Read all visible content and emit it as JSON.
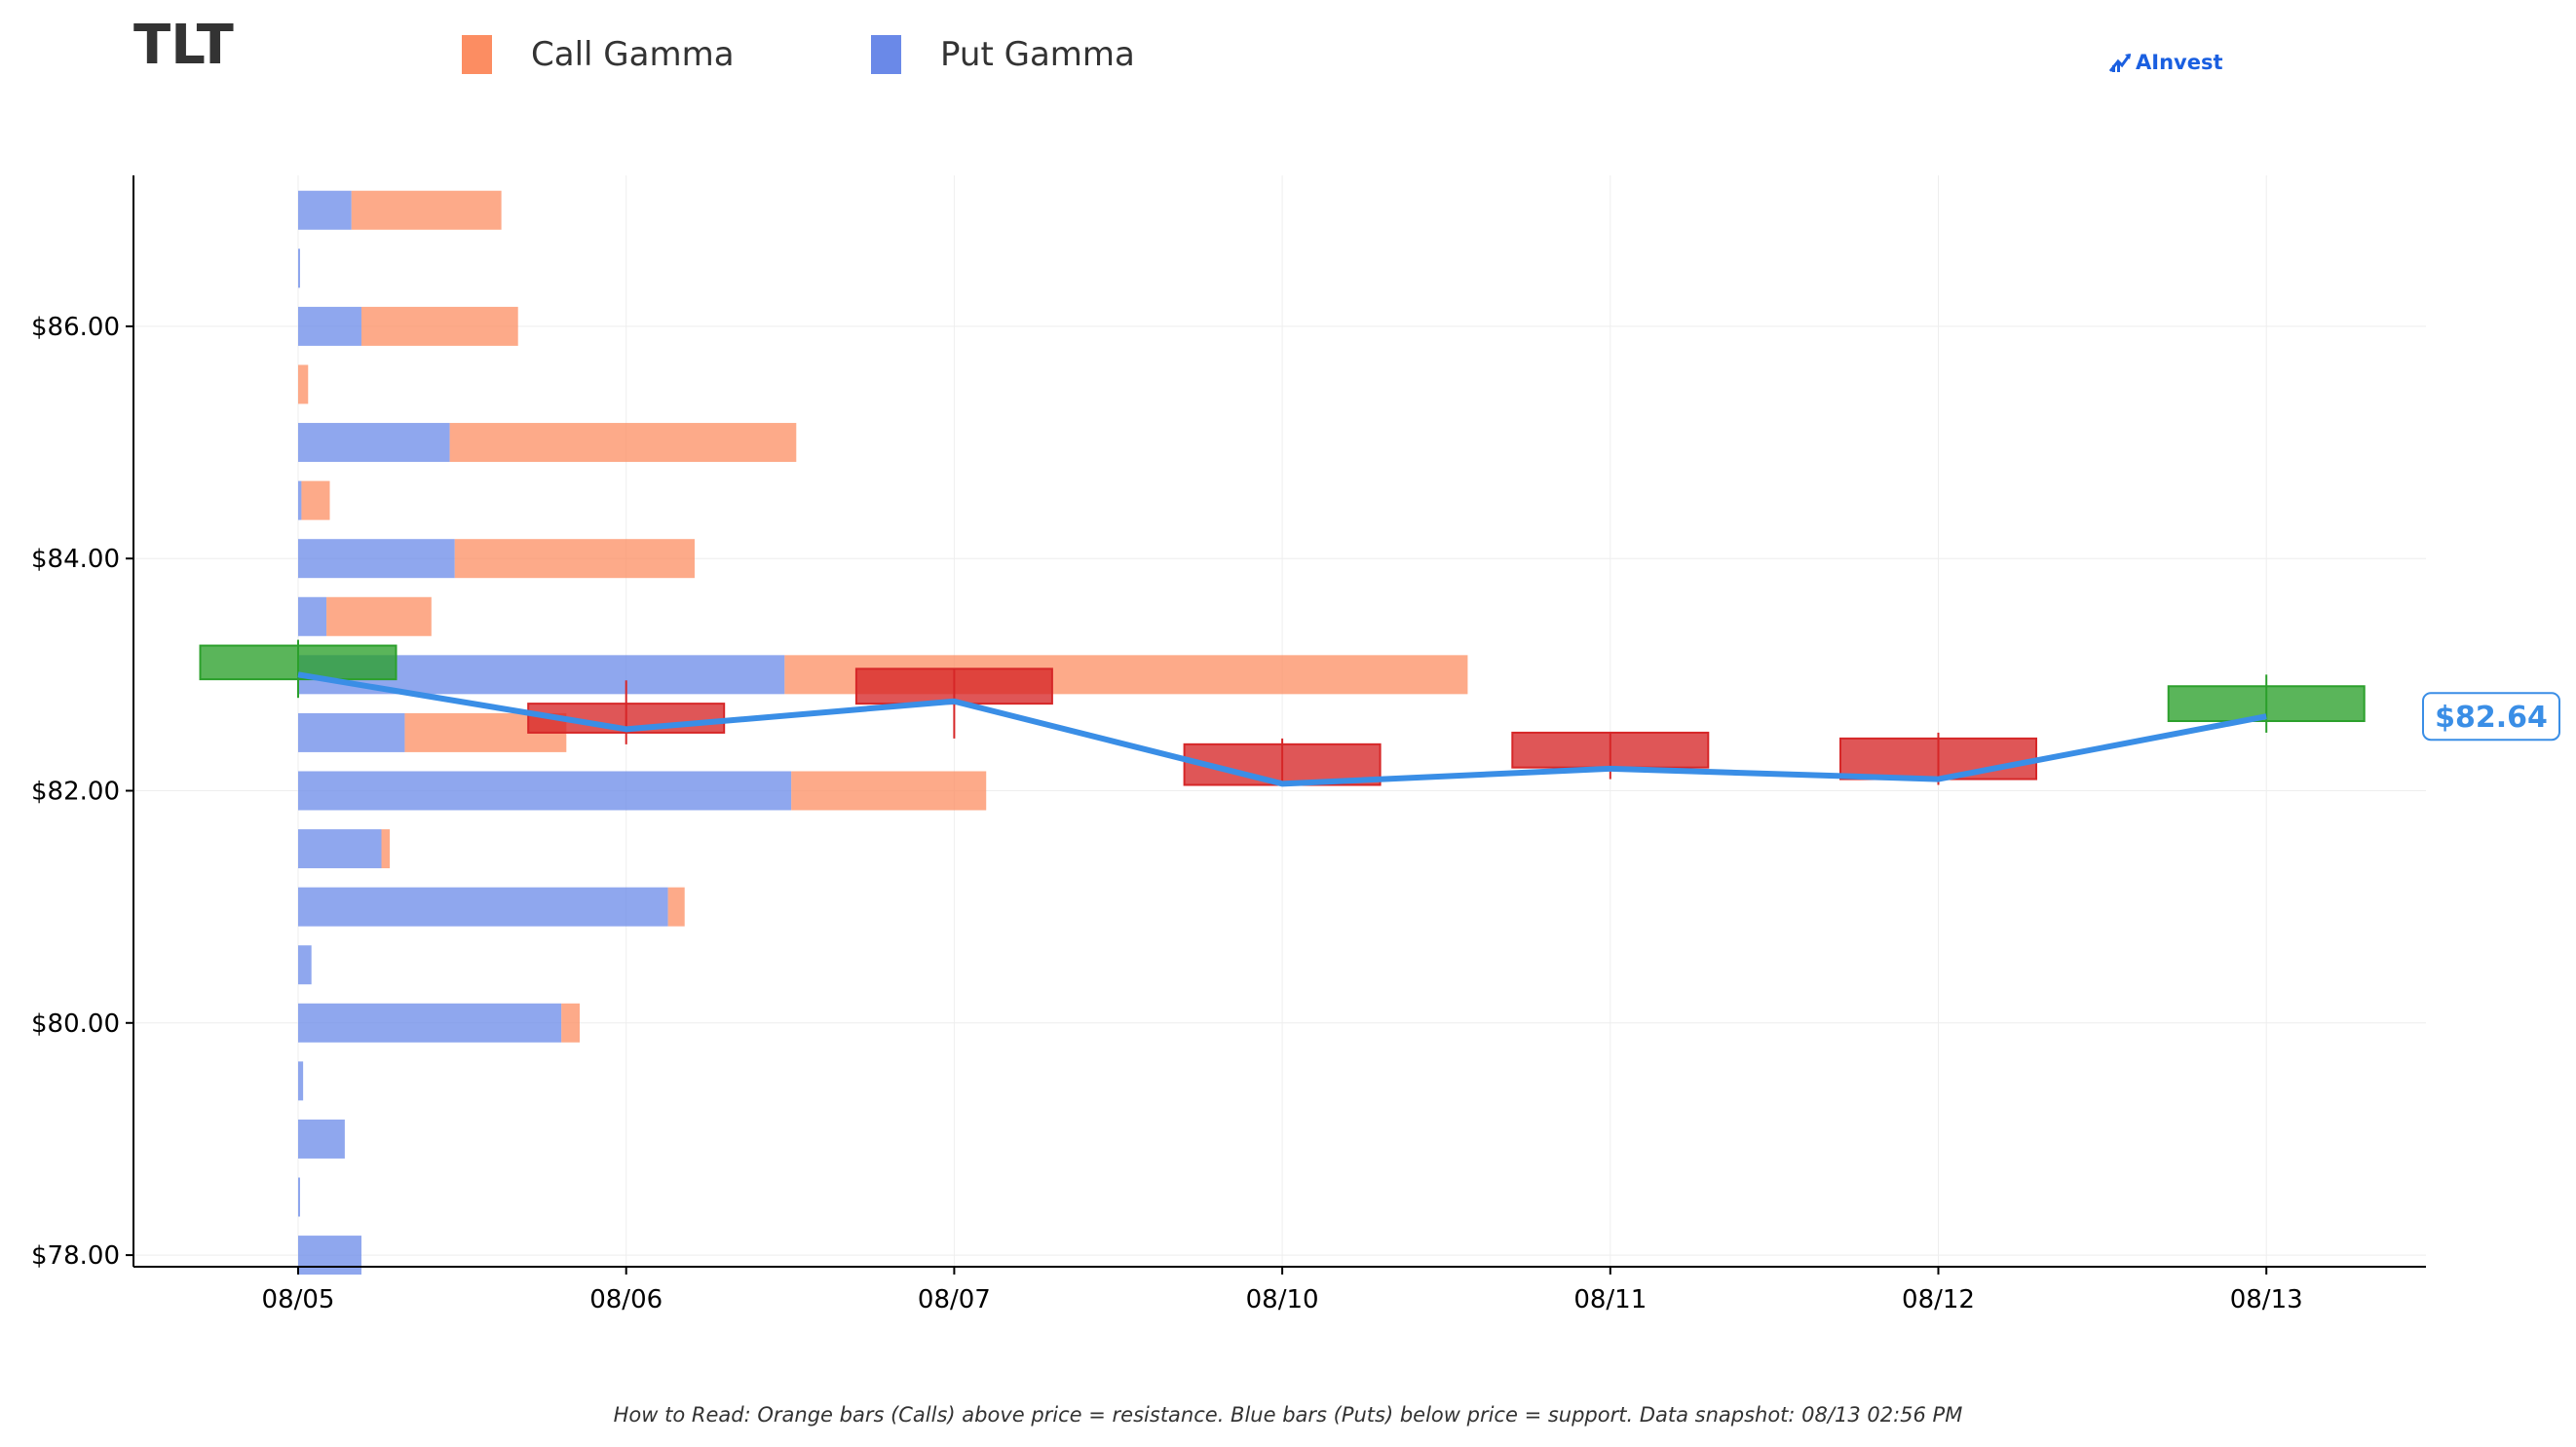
{
  "header": {
    "ticker": "TLT",
    "brand": "AInvest"
  },
  "legend": {
    "call_label": "Call Gamma",
    "put_label": "Put Gamma"
  },
  "caption": "How to Read: Orange bars (Calls) above price = resistance. Blue bars (Puts) below price = support. Data snapshot: 08/13 02:56 PM",
  "colors": {
    "call": "#fc8d62",
    "put": "#6a89e8",
    "up_candle": "#2ca02c",
    "down_candle": "#d62728",
    "price_line": "#3a8ee6"
  },
  "chart_data": {
    "type": "candlestick-with-gamma-bars",
    "title": "TLT",
    "xlabel": "",
    "ylabel": "",
    "categories": [
      "08/05",
      "08/06",
      "08/07",
      "08/10",
      "08/11",
      "08/12",
      "08/13"
    ],
    "ylim": [
      77.9,
      87.3
    ],
    "yticks": [
      78,
      80,
      82,
      84,
      86
    ],
    "ytick_labels": [
      "$78.00",
      "$80.00",
      "$82.00",
      "$84.00",
      "$86.00"
    ],
    "grid": true,
    "legend_position": "top",
    "last_price_label": "$82.64",
    "candles": [
      {
        "date": "08/05",
        "open": 82.96,
        "close": 83.25,
        "high": 83.3,
        "low": 82.8
      },
      {
        "date": "08/06",
        "open": 82.75,
        "close": 82.5,
        "high": 82.95,
        "low": 82.4
      },
      {
        "date": "08/07",
        "open": 83.05,
        "close": 82.75,
        "high": 83.05,
        "low": 82.45
      },
      {
        "date": "08/10",
        "open": 82.4,
        "close": 82.05,
        "high": 82.45,
        "low": 82.05
      },
      {
        "date": "08/11",
        "open": 82.5,
        "close": 82.2,
        "high": 82.5,
        "low": 82.1
      },
      {
        "date": "08/12",
        "open": 82.45,
        "close": 82.1,
        "high": 82.5,
        "low": 82.05
      },
      {
        "date": "08/13",
        "open": 82.6,
        "close": 82.9,
        "high": 83.0,
        "low": 82.5
      }
    ],
    "price_line": [
      {
        "date": "08/05",
        "price": 83.0
      },
      {
        "date": "08/06",
        "price": 82.53
      },
      {
        "date": "08/07",
        "price": 82.77
      },
      {
        "date": "08/10",
        "price": 82.06
      },
      {
        "date": "08/11",
        "price": 82.19
      },
      {
        "date": "08/12",
        "price": 82.1
      },
      {
        "date": "08/13",
        "price": 82.64
      }
    ],
    "gamma_unit": "relative",
    "gamma_bars": [
      {
        "strike": 87.0,
        "put": 0.16,
        "call": 0.45
      },
      {
        "strike": 86.5,
        "put": 0.005,
        "call": 0.0
      },
      {
        "strike": 86.0,
        "put": 0.19,
        "call": 0.47
      },
      {
        "strike": 85.5,
        "put": 0.0,
        "call": 0.03
      },
      {
        "strike": 85.0,
        "put": 0.455,
        "call": 1.04
      },
      {
        "strike": 84.5,
        "put": 0.01,
        "call": 0.085
      },
      {
        "strike": 84.0,
        "put": 0.47,
        "call": 0.72
      },
      {
        "strike": 83.5,
        "put": 0.085,
        "call": 0.315
      },
      {
        "strike": 83.0,
        "put": 1.46,
        "call": 2.05
      },
      {
        "strike": 82.5,
        "put": 0.32,
        "call": 0.485
      },
      {
        "strike": 82.0,
        "put": 1.48,
        "call": 0.585
      },
      {
        "strike": 81.5,
        "put": 0.25,
        "call": 0.025
      },
      {
        "strike": 81.0,
        "put": 1.11,
        "call": 0.05
      },
      {
        "strike": 80.5,
        "put": 0.04,
        "call": 0.0
      },
      {
        "strike": 80.0,
        "put": 0.79,
        "call": 0.055
      },
      {
        "strike": 79.5,
        "put": 0.015,
        "call": 0.0
      },
      {
        "strike": 79.0,
        "put": 0.14,
        "call": 0.0
      },
      {
        "strike": 78.5,
        "put": 0.005,
        "call": 0.0
      },
      {
        "strike": 78.0,
        "put": 0.19,
        "call": 0.0
      }
    ]
  }
}
